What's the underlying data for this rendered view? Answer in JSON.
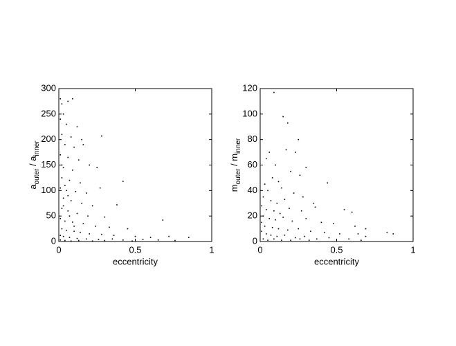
{
  "chart_data": [
    {
      "type": "scatter",
      "xlabel": "eccentricity",
      "ylabel": [
        "a",
        "outer",
        " / a",
        "inner"
      ],
      "color": "#000000",
      "xlim": [
        0,
        1
      ],
      "xticks": [
        0,
        0.5,
        1
      ],
      "ylim": [
        0,
        300
      ],
      "yticks": [
        0,
        50,
        100,
        150,
        200,
        250,
        300
      ],
      "x": [
        0.01,
        0.02,
        0.06,
        0.09,
        0.03,
        0.01,
        0.05,
        0.12,
        0.02,
        0.08,
        0.15,
        0.28,
        0.04,
        0.1,
        0.16,
        0.01,
        0.06,
        0.13,
        0.2,
        0.03,
        0.09,
        0.25,
        0.02,
        0.07,
        0.14,
        0.42,
        0.01,
        0.05,
        0.11,
        0.18,
        0.27,
        0.03,
        0.08,
        0.15,
        0.22,
        0.38,
        0.02,
        0.06,
        0.12,
        0.19,
        0.3,
        0.01,
        0.04,
        0.09,
        0.16,
        0.24,
        0.33,
        0.45,
        0.68,
        0.02,
        0.05,
        0.1,
        0.14,
        0.2,
        0.28,
        0.36,
        0.5,
        0.6,
        0.72,
        0.85,
        0.01,
        0.03,
        0.07,
        0.12,
        0.18,
        0.26,
        0.35,
        0.42,
        0.55,
        0.65,
        0.01,
        0.04,
        0.08,
        0.13,
        0.22,
        0.3,
        0.48,
        0.76,
        0.02,
        0.04,
        0.06,
        0.03,
        0.07,
        0.1
      ],
      "values": [
        280,
        270,
        275,
        280,
        250,
        240,
        230,
        225,
        210,
        205,
        200,
        207,
        190,
        185,
        190,
        170,
        165,
        160,
        150,
        145,
        140,
        145,
        125,
        120,
        115,
        118,
        105,
        100,
        98,
        95,
        105,
        85,
        80,
        75,
        70,
        72,
        65,
        60,
        55,
        50,
        48,
        45,
        40,
        38,
        35,
        30,
        28,
        25,
        42,
        25,
        22,
        20,
        18,
        15,
        14,
        12,
        10,
        8,
        10,
        8,
        12,
        10,
        8,
        6,
        5,
        4,
        5,
        3,
        4,
        3,
        3,
        2,
        1,
        2,
        1,
        2,
        1,
        2,
        150,
        110,
        90,
        70,
        50,
        30
      ]
    },
    {
      "type": "scatter",
      "xlabel": "eccentricity",
      "ylabel": [
        "m",
        "outer",
        " / m",
        "inner"
      ],
      "color": "#000000",
      "xlim": [
        0,
        1
      ],
      "xticks": [
        0,
        0.5,
        1
      ],
      "ylim": [
        0,
        120
      ],
      "yticks": [
        0,
        20,
        40,
        60,
        80,
        100,
        120
      ],
      "x": [
        0.09,
        0.15,
        0.18,
        0.25,
        0.06,
        0.17,
        0.23,
        0.04,
        0.1,
        0.2,
        0.3,
        0.08,
        0.12,
        0.26,
        0.44,
        0.03,
        0.05,
        0.14,
        0.22,
        0.02,
        0.07,
        0.11,
        0.16,
        0.28,
        0.35,
        0.01,
        0.04,
        0.09,
        0.13,
        0.19,
        0.27,
        0.36,
        0.55,
        0.6,
        0.02,
        0.06,
        0.1,
        0.15,
        0.21,
        0.3,
        0.4,
        0.48,
        0.62,
        0.69,
        0.01,
        0.03,
        0.08,
        0.12,
        0.18,
        0.25,
        0.33,
        0.42,
        0.52,
        0.64,
        0.69,
        0.83,
        0.87,
        0.01,
        0.04,
        0.07,
        0.11,
        0.16,
        0.23,
        0.29,
        0.37,
        0.45,
        0.58,
        0.66,
        0.02,
        0.05,
        0.09,
        0.14,
        0.2,
        0.26,
        0.32
      ],
      "values": [
        117,
        98,
        93,
        80,
        70,
        72,
        70,
        65,
        60,
        55,
        58,
        50,
        47,
        52,
        46,
        45,
        40,
        42,
        38,
        35,
        32,
        30,
        33,
        35,
        30,
        28,
        25,
        24,
        22,
        26,
        24,
        27,
        25,
        23,
        20,
        18,
        17,
        19,
        16,
        18,
        15,
        14,
        12,
        10,
        15,
        12,
        11,
        10,
        9,
        10,
        8,
        7,
        6,
        6,
        4,
        7,
        6,
        8,
        6,
        5,
        4,
        5,
        3,
        4,
        2,
        3,
        2,
        1,
        2,
        1,
        2,
        1,
        1,
        2,
        1
      ]
    }
  ]
}
